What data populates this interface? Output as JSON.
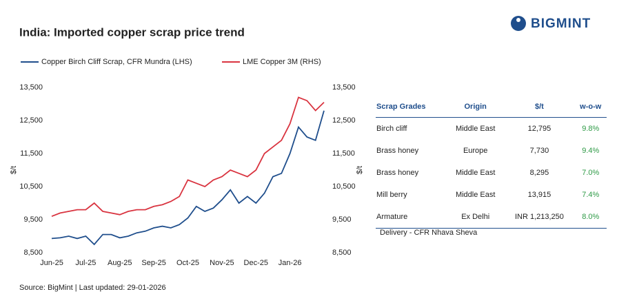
{
  "header": {
    "title": "India: Imported copper scrap price trend",
    "logo": "BIGMINT"
  },
  "chart_data": {
    "type": "line",
    "categories": [
      "Jun-25",
      null,
      null,
      null,
      "Jul-25",
      null,
      null,
      null,
      "Aug-25",
      null,
      null,
      null,
      "Sep-25",
      null,
      null,
      null,
      "Oct-25",
      null,
      null,
      null,
      "Nov-25",
      null,
      null,
      null,
      "Dec-25",
      null,
      null,
      null,
      "Jan-26",
      null,
      null,
      null,
      null
    ],
    "ylabel": "$/t",
    "y2label": "$/t",
    "ylim": [
      8500,
      13500
    ],
    "yticks": [
      {
        "value": 8500,
        "label": "8,500"
      },
      {
        "value": 9500,
        "label": "9,500"
      },
      {
        "value": 10500,
        "label": "10,500"
      },
      {
        "value": 11500,
        "label": "11,500"
      },
      {
        "value": 12500,
        "label": "12,500"
      },
      {
        "value": 13500,
        "label": "13,500"
      }
    ],
    "y2lim": [
      8500,
      13500
    ],
    "y2ticks": [
      {
        "value": 8500,
        "label": "8,500"
      },
      {
        "value": 9500,
        "label": "9,500"
      },
      {
        "value": 10500,
        "label": "10,500"
      },
      {
        "value": 11500,
        "label": "11,500"
      },
      {
        "value": 12500,
        "label": "12,500"
      },
      {
        "value": 13500,
        "label": "13,500"
      }
    ],
    "series": [
      {
        "name": "Copper Birch Cliff Scrap, CFR Mundra (LHS)",
        "color": "#1f4e8c",
        "values": [
          8930,
          8950,
          9000,
          8930,
          9000,
          8750,
          9050,
          9050,
          8950,
          9000,
          9100,
          9150,
          9250,
          9300,
          9250,
          9350,
          9550,
          9900,
          9750,
          9850,
          10100,
          10400,
          10000,
          10200,
          10000,
          10300,
          10800,
          10900,
          11500,
          12300,
          12000,
          11900,
          12795
        ]
      },
      {
        "name": "LME Copper 3M (RHS)",
        "color": "#d9333f",
        "axis": "y2",
        "values": [
          9600,
          9700,
          9750,
          9800,
          9800,
          10000,
          9750,
          9700,
          9650,
          9750,
          9800,
          9800,
          9900,
          9950,
          10050,
          10200,
          10700,
          10600,
          10500,
          10700,
          10800,
          11000,
          10900,
          10800,
          11000,
          11500,
          11700,
          11900,
          12400,
          13200,
          13100,
          12800,
          13050
        ]
      }
    ]
  },
  "table": {
    "columns": [
      "Scrap Grades",
      "Origin",
      "$/t",
      "w-o-w"
    ],
    "rows": [
      [
        "Birch cliff",
        "Middle East",
        "12,795",
        "9.8%"
      ],
      [
        "Brass honey",
        "Europe",
        "7,730",
        "9.4%"
      ],
      [
        "Brass honey",
        "Middle East",
        "8,295",
        "7.0%"
      ],
      [
        "Mill berry",
        "Middle East",
        "13,915",
        "7.4%"
      ],
      [
        "Armature",
        "Ex Delhi",
        "INR 1,213,250",
        "8.0%"
      ]
    ],
    "note": "Delivery - CFR Nhava Sheva"
  },
  "source": "Source: BigMint | Last updated: 29-01-2026"
}
